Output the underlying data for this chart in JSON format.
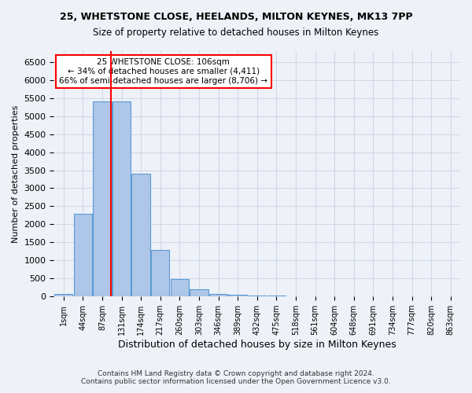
{
  "title": "25, WHETSTONE CLOSE, HEELANDS, MILTON KEYNES, MK13 7PP",
  "subtitle": "Size of property relative to detached houses in Milton Keynes",
  "xlabel": "Distribution of detached houses by size in Milton Keynes",
  "ylabel": "Number of detached properties",
  "bar_color": "#aec6e8",
  "bar_edge_color": "#5b9bd5",
  "annotation_line_color": "red",
  "annotation_text_line1": "25 WHETSTONE CLOSE: 106sqm",
  "annotation_text_line2": "← 34% of detached houses are smaller (4,411)",
  "annotation_text_line3": "66% of semi-detached houses are larger (8,706) →",
  "footer_line1": "Contains HM Land Registry data © Crown copyright and database right 2024.",
  "footer_line2": "Contains public sector information licensed under the Open Government Licence v3.0.",
  "bin_labels": [
    "1sqm",
    "44sqm",
    "87sqm",
    "131sqm",
    "174sqm",
    "217sqm",
    "260sqm",
    "303sqm",
    "346sqm",
    "389sqm",
    "432sqm",
    "475sqm",
    "518sqm",
    "561sqm",
    "604sqm",
    "648sqm",
    "691sqm",
    "734sqm",
    "777sqm",
    "820sqm",
    "863sqm"
  ],
  "bar_heights": [
    75,
    2300,
    5400,
    5400,
    3400,
    1300,
    480,
    200,
    75,
    50,
    30,
    20,
    10,
    5,
    3,
    2,
    1,
    1,
    0,
    0,
    0
  ],
  "ylim": [
    0,
    6800
  ],
  "yticks": [
    0,
    500,
    1000,
    1500,
    2000,
    2500,
    3000,
    3500,
    4000,
    4500,
    5000,
    5500,
    6000,
    6500
  ],
  "grid_color": "#d0d8e8",
  "background_color": "#eef2f8",
  "red_line_x": 2.432
}
